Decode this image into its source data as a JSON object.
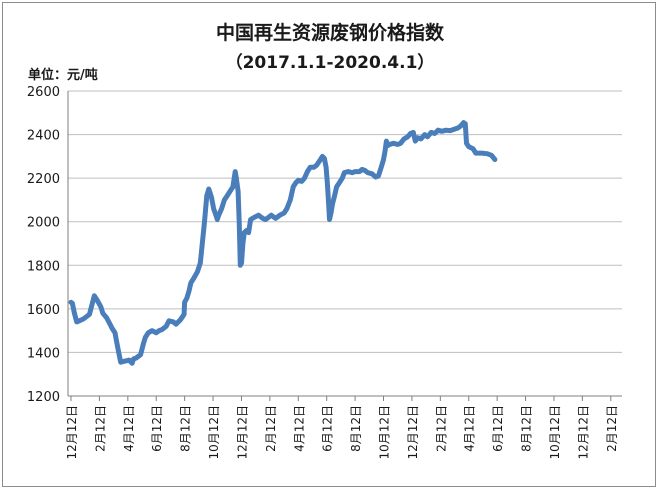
{
  "chart_data": {
    "type": "line",
    "title": "中国再生资源废钢价格指数",
    "subtitle": "（2017.1.1-2020.4.1）",
    "ylabel": "单位：元/吨",
    "ylim": [
      1200,
      2600
    ],
    "y_ticks": [
      1200,
      1400,
      1600,
      1800,
      2000,
      2200,
      2400,
      2600
    ],
    "x_ticks": [
      "12月12日",
      "2月12日",
      "4月12日",
      "6月12日",
      "8月12日",
      "10月12日",
      "12月12日",
      "2月12日",
      "4月12日",
      "6月12日",
      "8月12日",
      "10月12日",
      "12月12日",
      "2月12日",
      "4月12日",
      "6月12日",
      "8月12日",
      "10月12日",
      "12月12日",
      "2月12日"
    ],
    "line_color": "#4a7ebb",
    "series": [
      {
        "values": [
          [
            0,
            1630
          ],
          [
            0.05,
            1625
          ],
          [
            0.12,
            1580
          ],
          [
            0.2,
            1540
          ],
          [
            0.3,
            1545
          ],
          [
            0.45,
            1555
          ],
          [
            0.65,
            1575
          ],
          [
            0.82,
            1660
          ],
          [
            0.92,
            1640
          ],
          [
            1.05,
            1610
          ],
          [
            1.12,
            1580
          ],
          [
            1.25,
            1560
          ],
          [
            1.35,
            1535
          ],
          [
            1.45,
            1510
          ],
          [
            1.55,
            1490
          ],
          [
            1.62,
            1440
          ],
          [
            1.68,
            1400
          ],
          [
            1.75,
            1355
          ],
          [
            1.9,
            1360
          ],
          [
            2.05,
            1365
          ],
          [
            2.15,
            1350
          ],
          [
            2.2,
            1370
          ],
          [
            2.3,
            1375
          ],
          [
            2.45,
            1390
          ],
          [
            2.55,
            1440
          ],
          [
            2.62,
            1470
          ],
          [
            2.72,
            1490
          ],
          [
            2.85,
            1500
          ],
          [
            3.0,
            1490
          ],
          [
            3.1,
            1500
          ],
          [
            3.2,
            1505
          ],
          [
            3.35,
            1520
          ],
          [
            3.45,
            1545
          ],
          [
            3.6,
            1540
          ],
          [
            3.7,
            1530
          ],
          [
            3.85,
            1550
          ],
          [
            3.98,
            1575
          ],
          [
            4.0,
            1630
          ],
          [
            4.08,
            1650
          ],
          [
            4.15,
            1680
          ],
          [
            4.22,
            1720
          ],
          [
            4.32,
            1740
          ],
          [
            4.45,
            1770
          ],
          [
            4.55,
            1810
          ],
          [
            4.62,
            1900
          ],
          [
            4.7,
            2000
          ],
          [
            4.78,
            2120
          ],
          [
            4.85,
            2150
          ],
          [
            4.95,
            2110
          ],
          [
            5.02,
            2060
          ],
          [
            5.1,
            2030
          ],
          [
            5.15,
            2010
          ],
          [
            5.2,
            2030
          ],
          [
            5.3,
            2060
          ],
          [
            5.4,
            2100
          ],
          [
            5.5,
            2120
          ],
          [
            5.6,
            2140
          ],
          [
            5.7,
            2160
          ],
          [
            5.78,
            2230
          ],
          [
            5.82,
            2200
          ],
          [
            5.88,
            2140
          ],
          [
            5.92,
            2000
          ],
          [
            5.96,
            1800
          ],
          [
            6.0,
            1810
          ],
          [
            6.05,
            1900
          ],
          [
            6.1,
            1950
          ],
          [
            6.18,
            1960
          ],
          [
            6.25,
            1950
          ],
          [
            6.32,
            2010
          ],
          [
            6.45,
            2020
          ],
          [
            6.6,
            2030
          ],
          [
            6.75,
            2015
          ],
          [
            6.85,
            2010
          ],
          [
            6.95,
            2020
          ],
          [
            7.05,
            2030
          ],
          [
            7.2,
            2015
          ],
          [
            7.35,
            2030
          ],
          [
            7.5,
            2040
          ],
          [
            7.6,
            2060
          ],
          [
            7.72,
            2100
          ],
          [
            7.82,
            2160
          ],
          [
            7.92,
            2180
          ],
          [
            8.0,
            2190
          ],
          [
            8.12,
            2185
          ],
          [
            8.22,
            2200
          ],
          [
            8.32,
            2230
          ],
          [
            8.42,
            2250
          ],
          [
            8.55,
            2250
          ],
          [
            8.65,
            2260
          ],
          [
            8.78,
            2285
          ],
          [
            8.85,
            2300
          ],
          [
            8.92,
            2290
          ],
          [
            8.98,
            2250
          ],
          [
            9.02,
            2180
          ],
          [
            9.06,
            2100
          ],
          [
            9.1,
            2010
          ],
          [
            9.15,
            2040
          ],
          [
            9.2,
            2080
          ],
          [
            9.28,
            2120
          ],
          [
            9.35,
            2160
          ],
          [
            9.45,
            2180
          ],
          [
            9.55,
            2200
          ],
          [
            9.62,
            2225
          ],
          [
            9.75,
            2230
          ],
          [
            9.9,
            2225
          ],
          [
            10.0,
            2230
          ],
          [
            10.15,
            2230
          ],
          [
            10.25,
            2240
          ],
          [
            10.35,
            2235
          ],
          [
            10.45,
            2225
          ],
          [
            10.6,
            2220
          ],
          [
            10.72,
            2205
          ],
          [
            10.82,
            2210
          ],
          [
            10.92,
            2250
          ],
          [
            11.0,
            2285
          ],
          [
            11.05,
            2320
          ],
          [
            11.1,
            2370
          ],
          [
            11.15,
            2350
          ],
          [
            11.22,
            2355
          ],
          [
            11.35,
            2360
          ],
          [
            11.5,
            2355
          ],
          [
            11.6,
            2360
          ],
          [
            11.72,
            2380
          ],
          [
            11.85,
            2390
          ],
          [
            11.95,
            2405
          ],
          [
            12.05,
            2410
          ],
          [
            12.12,
            2370
          ],
          [
            12.2,
            2385
          ],
          [
            12.32,
            2380
          ],
          [
            12.45,
            2400
          ],
          [
            12.55,
            2390
          ],
          [
            12.68,
            2410
          ],
          [
            12.8,
            2405
          ],
          [
            12.92,
            2420
          ],
          [
            13.05,
            2415
          ],
          [
            13.2,
            2420
          ],
          [
            13.35,
            2418
          ],
          [
            13.5,
            2425
          ],
          [
            13.62,
            2430
          ],
          [
            13.72,
            2440
          ],
          [
            13.82,
            2455
          ],
          [
            13.88,
            2450
          ],
          [
            13.92,
            2360
          ],
          [
            14.0,
            2345
          ],
          [
            14.15,
            2335
          ],
          [
            14.25,
            2315
          ],
          [
            14.45,
            2315
          ],
          [
            14.65,
            2312
          ],
          [
            14.8,
            2305
          ],
          [
            14.92,
            2285
          ]
        ]
      }
    ]
  }
}
